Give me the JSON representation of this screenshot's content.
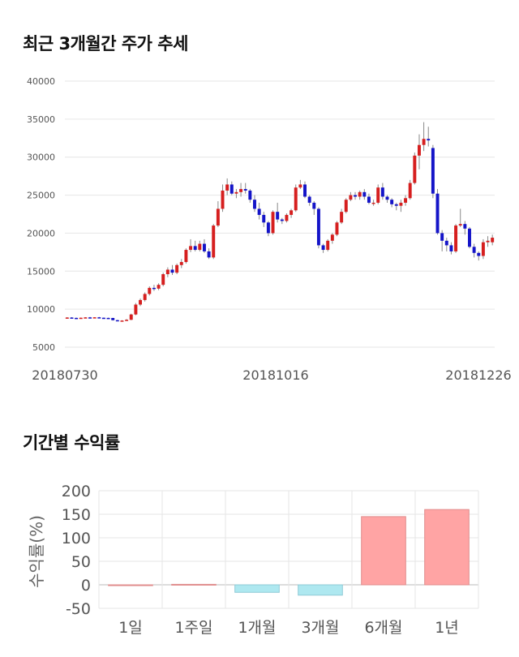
{
  "titles": {
    "price_trend": "최근 3개월간 주가 추세",
    "returns": "기간별 수익률"
  },
  "chart_data": [
    {
      "type": "candlestick",
      "yticks": [
        5000,
        10000,
        15000,
        20000,
        25000,
        30000,
        35000,
        40000
      ],
      "ylim": [
        5000,
        40000
      ],
      "xticks": [
        "20180730",
        "20181016",
        "20181226"
      ],
      "grid": true,
      "up_color": "#d61f1f",
      "down_color": "#1414c8",
      "candles": [
        [
          8850,
          8950,
          8800,
          8900
        ],
        [
          8900,
          8950,
          8800,
          8850
        ],
        [
          8850,
          8900,
          8780,
          8820
        ],
        [
          8820,
          8900,
          8800,
          8870
        ],
        [
          8870,
          8950,
          8850,
          8920
        ],
        [
          8920,
          8980,
          8850,
          8880
        ],
        [
          8880,
          8950,
          8850,
          8930
        ],
        [
          8930,
          8980,
          8850,
          8870
        ],
        [
          8870,
          8900,
          8800,
          8850
        ],
        [
          8850,
          8880,
          8800,
          8840
        ],
        [
          8840,
          8860,
          8500,
          8550
        ],
        [
          8550,
          8600,
          8400,
          8450
        ],
        [
          8450,
          8550,
          8400,
          8500
        ],
        [
          8500,
          8700,
          8450,
          8600
        ],
        [
          8600,
          9400,
          8550,
          9300
        ],
        [
          9300,
          10800,
          9200,
          10600
        ],
        [
          10600,
          11400,
          10400,
          11200
        ],
        [
          11200,
          12200,
          11000,
          12000
        ],
        [
          12000,
          13000,
          11800,
          12800
        ],
        [
          12800,
          13200,
          12400,
          12700
        ],
        [
          12700,
          13400,
          12500,
          13200
        ],
        [
          13200,
          14800,
          13000,
          14600
        ],
        [
          14600,
          15500,
          14200,
          15200
        ],
        [
          15200,
          15800,
          14500,
          14800
        ],
        [
          14800,
          16000,
          14600,
          15800
        ],
        [
          15800,
          16600,
          15400,
          16200
        ],
        [
          16200,
          18000,
          16000,
          17800
        ],
        [
          17800,
          19200,
          17500,
          18300
        ],
        [
          18300,
          19000,
          17600,
          17800
        ],
        [
          17800,
          19000,
          17600,
          18600
        ],
        [
          18600,
          19200,
          17400,
          17600
        ],
        [
          17600,
          18000,
          16600,
          16800
        ],
        [
          16800,
          21200,
          16600,
          21000
        ],
        [
          21000,
          24200,
          20800,
          23200
        ],
        [
          23200,
          26400,
          22800,
          25600
        ],
        [
          25600,
          27200,
          25000,
          26400
        ],
        [
          26400,
          26800,
          25000,
          25200
        ],
        [
          25200,
          25800,
          24600,
          25400
        ],
        [
          25400,
          26600,
          24800,
          25800
        ],
        [
          25800,
          26600,
          25200,
          25600
        ],
        [
          25600,
          25800,
          24000,
          24400
        ],
        [
          24400,
          25000,
          22800,
          23200
        ],
        [
          23200,
          24000,
          21800,
          22400
        ],
        [
          22400,
          22800,
          20800,
          21400
        ],
        [
          21400,
          21600,
          19600,
          20000
        ],
        [
          20000,
          23000,
          19800,
          22800
        ],
        [
          22800,
          24000,
          21400,
          21800
        ],
        [
          21800,
          22000,
          21200,
          21600
        ],
        [
          21600,
          22600,
          21400,
          22400
        ],
        [
          22400,
          23200,
          22000,
          23000
        ],
        [
          23000,
          26400,
          22800,
          26000
        ],
        [
          26000,
          27000,
          25800,
          26400
        ],
        [
          26400,
          26800,
          24600,
          24800
        ],
        [
          24800,
          25000,
          23600,
          24000
        ],
        [
          24000,
          24200,
          22400,
          23200
        ],
        [
          23200,
          23400,
          18000,
          18400
        ],
        [
          18400,
          18600,
          17400,
          17800
        ],
        [
          17800,
          19200,
          17600,
          19000
        ],
        [
          19000,
          20000,
          18600,
          19800
        ],
        [
          19800,
          21600,
          19600,
          21400
        ],
        [
          21400,
          23200,
          21200,
          22800
        ],
        [
          22800,
          24600,
          22600,
          24400
        ],
        [
          24400,
          25400,
          24200,
          25000
        ],
        [
          25000,
          25400,
          24400,
          24800
        ],
        [
          24800,
          25600,
          24400,
          25400
        ],
        [
          25400,
          25800,
          24400,
          24800
        ],
        [
          24800,
          25200,
          23800,
          24000
        ],
        [
          24000,
          24400,
          23600,
          24000
        ],
        [
          24000,
          26400,
          23800,
          26000
        ],
        [
          26000,
          26600,
          24400,
          24800
        ],
        [
          24800,
          25000,
          24000,
          24400
        ],
        [
          24400,
          24600,
          23400,
          23800
        ],
        [
          23800,
          24000,
          23000,
          23600
        ],
        [
          23600,
          24400,
          22800,
          24000
        ],
        [
          24000,
          25000,
          23600,
          24600
        ],
        [
          24600,
          27000,
          24400,
          26600
        ],
        [
          26600,
          30600,
          26400,
          30200
        ],
        [
          30200,
          33000,
          28400,
          31600
        ],
        [
          31600,
          34600,
          30800,
          32400
        ],
        [
          32400,
          34000,
          31400,
          32200
        ],
        [
          31200,
          31600,
          24600,
          25200
        ],
        [
          25200,
          25800,
          19800,
          20000
        ],
        [
          20000,
          20400,
          17600,
          19000
        ],
        [
          19000,
          19400,
          17600,
          18400
        ],
        [
          18400,
          18800,
          17200,
          17600
        ],
        [
          17600,
          21200,
          17400,
          21000
        ],
        [
          21000,
          23200,
          20800,
          21200
        ],
        [
          21200,
          21600,
          19800,
          20600
        ],
        [
          20600,
          20800,
          18000,
          18200
        ],
        [
          18200,
          18600,
          16800,
          17400
        ],
        [
          17400,
          17600,
          16400,
          17000
        ],
        [
          17000,
          19200,
          16600,
          18800
        ],
        [
          18800,
          19600,
          18200,
          19000
        ],
        [
          18800,
          19800,
          18400,
          19400
        ]
      ]
    },
    {
      "type": "bar",
      "categories": [
        "1일",
        "1주일",
        "1개월",
        "3개월",
        "6개월",
        "1년"
      ],
      "values": [
        0,
        1,
        -16,
        -22,
        145,
        160
      ],
      "ylabel": "수익률(%)",
      "yticks": [
        -50,
        0,
        50,
        100,
        150,
        200
      ],
      "ylim": [
        -50,
        200
      ],
      "grid": true,
      "pos_color": "#ffa4a4",
      "neg_color": "#aee8f0"
    }
  ]
}
